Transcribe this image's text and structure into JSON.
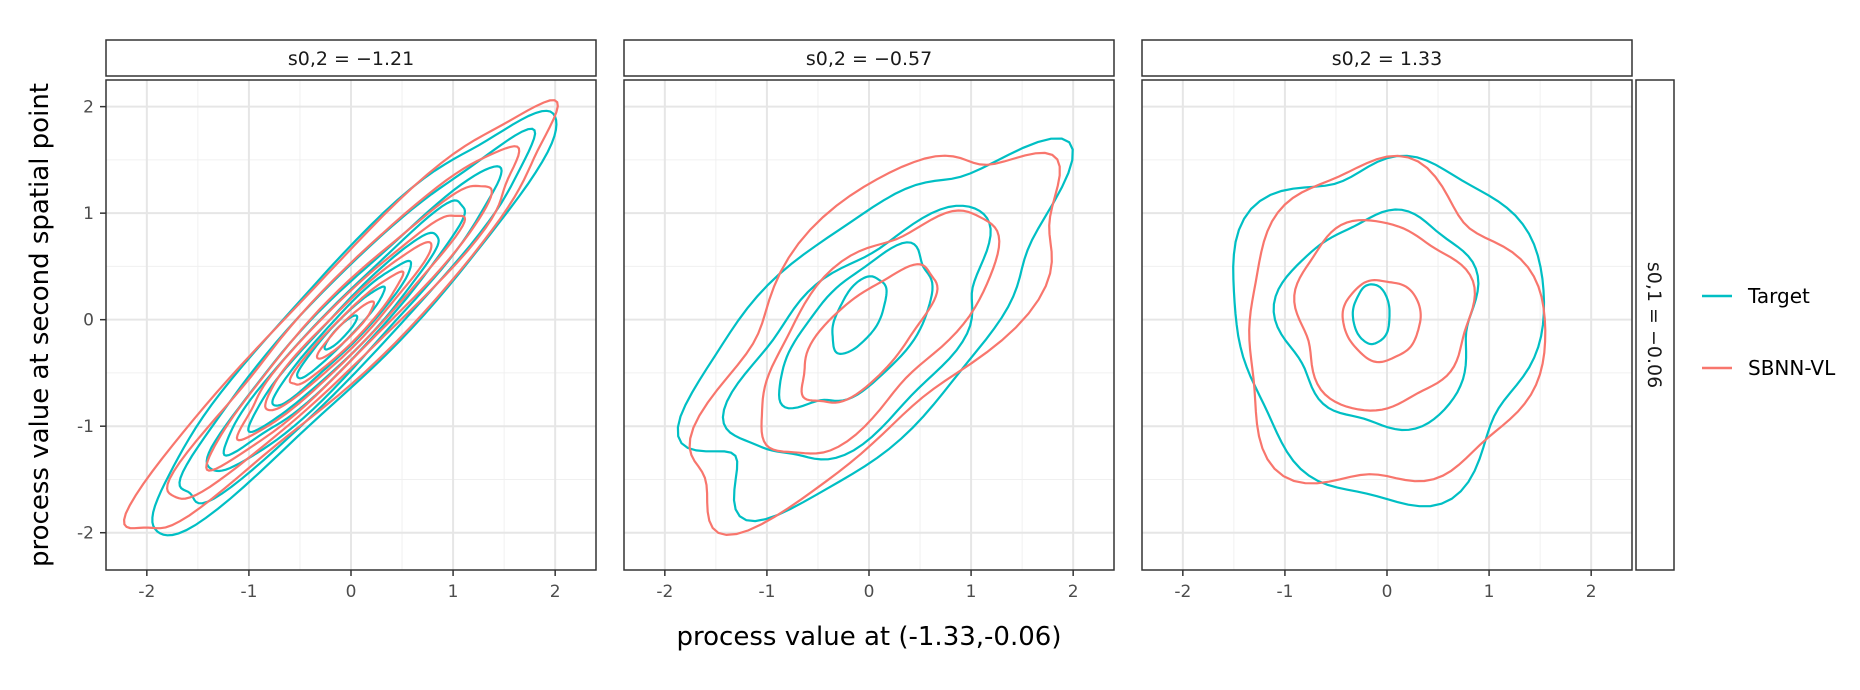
{
  "chart_data": {
    "type": "contour",
    "xlabel": "process value at (-1.33,-0.06)",
    "ylabel": "process value at second spatial point",
    "xlim": [
      -2.4,
      2.4
    ],
    "ylim": [
      -2.35,
      2.25
    ],
    "x_ticks": [
      -2,
      -1,
      0,
      1,
      2
    ],
    "y_ticks": [
      -2,
      -1,
      0,
      1,
      2
    ],
    "x_tick_labels": [
      "-2",
      "-1",
      "0",
      "1",
      "2"
    ],
    "y_tick_labels": [
      "-2",
      "-1",
      "0",
      "1",
      "2"
    ],
    "grid": true,
    "legend_position": "right",
    "row_strip_label": "s0,1 = −0.06",
    "panel_strip_labels": [
      "s0,2 = −1.21",
      "s0,2 = −0.57",
      "s0,2 = 1.33"
    ],
    "series": [
      {
        "name": "Target",
        "color": "#00BFC4"
      },
      {
        "name": "SBNN-VL",
        "color": "#F8766D"
      }
    ],
    "panels": [
      {
        "label": "s0,2 = −1.21",
        "contours": [
          {
            "series": 0,
            "cx": 0.0,
            "cy": 0.0,
            "rx": 2.75,
            "ry": 0.48,
            "angle": 45,
            "wobble": 0.04,
            "seed": 1
          },
          {
            "series": 0,
            "cx": 0.0,
            "cy": -0.02,
            "rx": 2.4,
            "ry": 0.38,
            "angle": 45,
            "wobble": 0.04,
            "seed": 2
          },
          {
            "series": 0,
            "cx": 0.0,
            "cy": -0.05,
            "rx": 2.0,
            "ry": 0.3,
            "angle": 45,
            "wobble": 0.04,
            "seed": 3
          },
          {
            "series": 0,
            "cx": -0.05,
            "cy": -0.08,
            "rx": 1.65,
            "ry": 0.24,
            "angle": 45,
            "wobble": 0.04,
            "seed": 4
          },
          {
            "series": 0,
            "cx": -0.05,
            "cy": -0.1,
            "rx": 1.3,
            "ry": 0.19,
            "angle": 45,
            "wobble": 0.03,
            "seed": 5
          },
          {
            "series": 0,
            "cx": -0.08,
            "cy": -0.12,
            "rx": 0.95,
            "ry": 0.14,
            "angle": 45,
            "wobble": 0.03,
            "seed": 6
          },
          {
            "series": 0,
            "cx": -0.1,
            "cy": -0.12,
            "rx": 0.6,
            "ry": 0.09,
            "angle": 45,
            "wobble": 0.02,
            "seed": 7
          },
          {
            "series": 0,
            "cx": -0.1,
            "cy": -0.12,
            "rx": 0.22,
            "ry": 0.05,
            "angle": 45,
            "wobble": 0.01,
            "seed": 8
          },
          {
            "series": 1,
            "cx": -0.05,
            "cy": 0.0,
            "rx": 2.85,
            "ry": 0.46,
            "angle": 44,
            "wobble": 0.05,
            "seed": 11
          },
          {
            "series": 1,
            "cx": -0.02,
            "cy": 0.0,
            "rx": 2.35,
            "ry": 0.36,
            "angle": 44,
            "wobble": 0.05,
            "seed": 12
          },
          {
            "series": 1,
            "cx": 0.0,
            "cy": -0.02,
            "rx": 1.9,
            "ry": 0.28,
            "angle": 44,
            "wobble": 0.04,
            "seed": 13
          },
          {
            "series": 1,
            "cx": -0.02,
            "cy": -0.05,
            "rx": 1.5,
            "ry": 0.22,
            "angle": 44,
            "wobble": 0.04,
            "seed": 14
          },
          {
            "series": 1,
            "cx": -0.05,
            "cy": -0.08,
            "rx": 1.12,
            "ry": 0.17,
            "angle": 44,
            "wobble": 0.03,
            "seed": 15
          },
          {
            "series": 1,
            "cx": -0.05,
            "cy": -0.1,
            "rx": 0.75,
            "ry": 0.12,
            "angle": 44,
            "wobble": 0.03,
            "seed": 16
          },
          {
            "series": 1,
            "cx": -0.05,
            "cy": -0.1,
            "rx": 0.38,
            "ry": 0.07,
            "angle": 44,
            "wobble": 0.02,
            "seed": 17
          }
        ]
      },
      {
        "label": "s0,2 = −0.57",
        "contours": [
          {
            "series": 0,
            "cx": 0.0,
            "cy": -0.1,
            "rx": 2.2,
            "ry": 0.95,
            "angle": 42,
            "wobble": 0.1,
            "seed": 21
          },
          {
            "series": 0,
            "cx": -0.05,
            "cy": -0.2,
            "rx": 1.55,
            "ry": 0.7,
            "angle": 42,
            "wobble": 0.08,
            "seed": 22
          },
          {
            "series": 0,
            "cx": -0.1,
            "cy": -0.1,
            "rx": 0.95,
            "ry": 0.45,
            "angle": 45,
            "wobble": 0.06,
            "seed": 23
          },
          {
            "series": 0,
            "cx": -0.1,
            "cy": 0.05,
            "rx": 0.4,
            "ry": 0.2,
            "angle": 60,
            "wobble": 0.03,
            "seed": 24
          },
          {
            "series": 1,
            "cx": 0.05,
            "cy": -0.05,
            "rx": 2.3,
            "ry": 0.95,
            "angle": 44,
            "wobble": 0.1,
            "seed": 31
          },
          {
            "series": 1,
            "cx": 0.05,
            "cy": -0.1,
            "rx": 1.5,
            "ry": 0.62,
            "angle": 44,
            "wobble": 0.07,
            "seed": 32
          },
          {
            "series": 1,
            "cx": -0.02,
            "cy": -0.15,
            "rx": 0.85,
            "ry": 0.35,
            "angle": 44,
            "wobble": 0.05,
            "seed": 33
          }
        ]
      },
      {
        "label": "s0,2 = 1.33",
        "contours": [
          {
            "series": 0,
            "cx": 0.0,
            "cy": -0.05,
            "rx": 1.5,
            "ry": 1.6,
            "angle": 0,
            "wobble": 0.07,
            "seed": 41
          },
          {
            "series": 0,
            "cx": -0.05,
            "cy": 0.0,
            "rx": 0.95,
            "ry": 1.0,
            "angle": 0,
            "wobble": 0.07,
            "seed": 42
          },
          {
            "series": 0,
            "cx": -0.15,
            "cy": 0.05,
            "rx": 0.18,
            "ry": 0.28,
            "angle": 0,
            "wobble": 0.02,
            "seed": 43
          },
          {
            "series": 1,
            "cx": 0.0,
            "cy": -0.1,
            "rx": 1.45,
            "ry": 1.5,
            "angle": 0,
            "wobble": 0.08,
            "seed": 51
          },
          {
            "series": 1,
            "cx": -0.05,
            "cy": 0.05,
            "rx": 0.85,
            "ry": 0.88,
            "angle": 0,
            "wobble": 0.06,
            "seed": 52
          },
          {
            "series": 1,
            "cx": -0.05,
            "cy": 0.0,
            "rx": 0.38,
            "ry": 0.38,
            "angle": 0,
            "wobble": 0.03,
            "seed": 53
          }
        ]
      }
    ]
  }
}
